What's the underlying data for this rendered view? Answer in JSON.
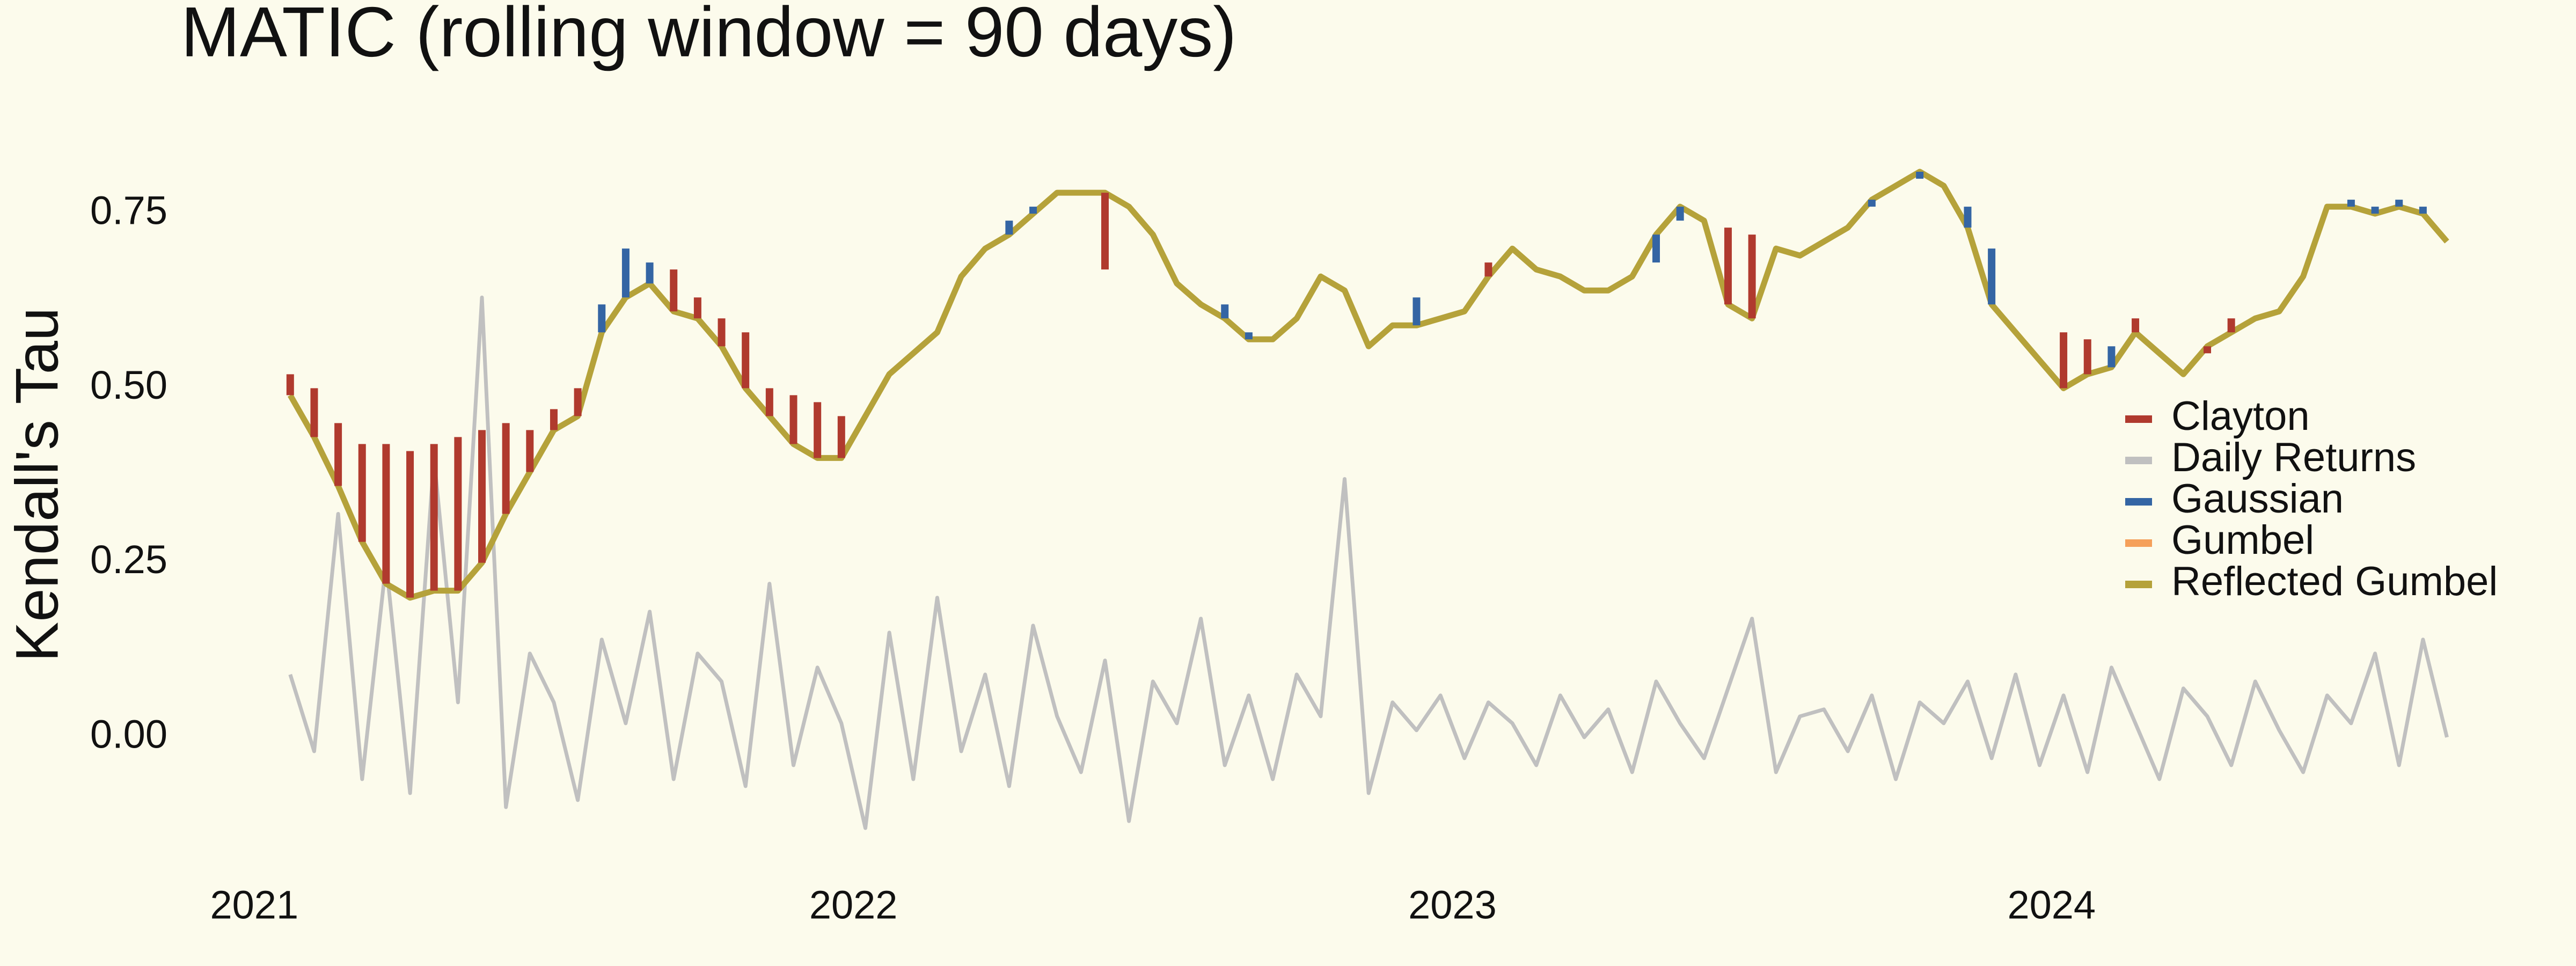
{
  "chart_data": {
    "type": "line",
    "title": "MATIC  (rolling window = 90 days)",
    "y_label": "Kendall's Tau",
    "x": [
      2021.06,
      2021.1,
      2021.14,
      2021.18,
      2021.22,
      2021.26,
      2021.3,
      2021.34,
      2021.38,
      2021.42,
      2021.46,
      2021.5,
      2021.54,
      2021.58,
      2021.62,
      2021.66,
      2021.7,
      2021.74,
      2021.78,
      2021.82,
      2021.86,
      2021.9,
      2021.94,
      2021.98,
      2022.02,
      2022.06,
      2022.1,
      2022.14,
      2022.18,
      2022.22,
      2022.26,
      2022.3,
      2022.34,
      2022.38,
      2022.42,
      2022.46,
      2022.5,
      2022.54,
      2022.58,
      2022.62,
      2022.66,
      2022.7,
      2022.74,
      2022.78,
      2022.82,
      2022.86,
      2022.9,
      2022.94,
      2022.98,
      2023.02,
      2023.06,
      2023.1,
      2023.14,
      2023.18,
      2023.22,
      2023.26,
      2023.3,
      2023.34,
      2023.38,
      2023.42,
      2023.46,
      2023.5,
      2023.54,
      2023.58,
      2023.62,
      2023.66,
      2023.7,
      2023.74,
      2023.78,
      2023.82,
      2023.86,
      2023.9,
      2023.94,
      2023.98,
      2024.02,
      2024.06,
      2024.1,
      2024.14,
      2024.18,
      2024.22,
      2024.26,
      2024.3,
      2024.34,
      2024.38,
      2024.42,
      2024.46,
      2024.5,
      2024.54,
      2024.58,
      2024.62,
      2024.66
    ],
    "series": [
      {
        "name": "Clayton",
        "color": "#b03a2e",
        "values": [
          0.52,
          0.5,
          0.45,
          0.42,
          0.42,
          0.41,
          0.42,
          0.43,
          0.44,
          0.45,
          0.44,
          0.47,
          0.5,
          null,
          null,
          null,
          0.67,
          0.63,
          0.6,
          0.58,
          0.5,
          0.49,
          0.48,
          0.46,
          null,
          null,
          null,
          null,
          null,
          null,
          null,
          null,
          null,
          null,
          0.67,
          null,
          null,
          null,
          null,
          null,
          null,
          null,
          null,
          null,
          null,
          null,
          null,
          null,
          null,
          null,
          0.68,
          null,
          null,
          null,
          null,
          null,
          null,
          null,
          null,
          null,
          0.73,
          0.72,
          null,
          null,
          null,
          null,
          null,
          null,
          null,
          null,
          null,
          null,
          null,
          null,
          0.58,
          0.57,
          null,
          0.6,
          null,
          null,
          0.55,
          0.6,
          null,
          null,
          null,
          null,
          null,
          null,
          null,
          null,
          null
        ]
      },
      {
        "name": "Daily Returns",
        "color": "#c0c0c0",
        "values": [
          0.09,
          -0.02,
          0.32,
          -0.06,
          0.25,
          -0.08,
          0.4,
          0.05,
          0.63,
          -0.1,
          0.12,
          0.05,
          -0.09,
          0.14,
          0.02,
          0.18,
          -0.06,
          0.12,
          0.08,
          -0.07,
          0.22,
          -0.04,
          0.1,
          0.02,
          -0.13,
          0.15,
          -0.06,
          0.2,
          -0.02,
          0.09,
          -0.07,
          0.16,
          0.03,
          -0.05,
          0.11,
          -0.12,
          0.08,
          0.02,
          0.17,
          -0.04,
          0.06,
          -0.06,
          0.09,
          0.03,
          0.37,
          -0.08,
          0.05,
          0.01,
          0.06,
          -0.03,
          0.05,
          0.02,
          -0.04,
          0.06,
          0.0,
          0.04,
          -0.05,
          0.08,
          0.02,
          -0.03,
          0.07,
          0.17,
          -0.05,
          0.03,
          0.04,
          -0.02,
          0.06,
          -0.06,
          0.05,
          0.02,
          0.08,
          -0.03,
          0.09,
          -0.04,
          0.06,
          -0.05,
          0.1,
          0.02,
          -0.06,
          0.07,
          0.03,
          -0.04,
          0.08,
          0.01,
          -0.05,
          0.06,
          0.02,
          0.12,
          -0.04,
          0.14,
          0.0
        ]
      },
      {
        "name": "Gaussian",
        "color": "#3465a4",
        "values": [
          null,
          null,
          null,
          null,
          null,
          null,
          null,
          null,
          null,
          null,
          null,
          null,
          null,
          0.62,
          0.7,
          0.68,
          null,
          null,
          null,
          null,
          null,
          null,
          null,
          null,
          null,
          null,
          null,
          null,
          null,
          null,
          0.74,
          0.76,
          null,
          null,
          null,
          null,
          null,
          null,
          null,
          0.62,
          0.58,
          null,
          null,
          null,
          null,
          null,
          null,
          0.63,
          null,
          null,
          null,
          null,
          null,
          null,
          null,
          null,
          null,
          0.68,
          0.74,
          null,
          null,
          null,
          null,
          null,
          null,
          null,
          0.76,
          0.79,
          0.8,
          null,
          0.76,
          0.7,
          null,
          null,
          null,
          null,
          0.56,
          null,
          null,
          null,
          null,
          null,
          null,
          null,
          null,
          null,
          0.77,
          0.76,
          0.77,
          0.76,
          null
        ]
      },
      {
        "name": "Gumbel",
        "color": "#f5a05a",
        "values": [
          null,
          null,
          null,
          null,
          null,
          null,
          null,
          null,
          null,
          null,
          null,
          null,
          null,
          null,
          null,
          null,
          null,
          null,
          null,
          null,
          null,
          null,
          null,
          null,
          null,
          null,
          null,
          null,
          null,
          null,
          null,
          null,
          null,
          null,
          null,
          null,
          null,
          null,
          null,
          null,
          null,
          null,
          null,
          null,
          null,
          null,
          null,
          null,
          null,
          null,
          null,
          null,
          null,
          null,
          null,
          null,
          null,
          null,
          null,
          null,
          null,
          null,
          null,
          null,
          null,
          null,
          null,
          null,
          null,
          null,
          null,
          null,
          null,
          null,
          null,
          null,
          null,
          null,
          null,
          null,
          null,
          null,
          null,
          null,
          null,
          null,
          null,
          null,
          null,
          null,
          null
        ]
      },
      {
        "name": "Reflected Gumbel",
        "color": "#b5a23a",
        "values": [
          0.49,
          0.43,
          0.36,
          0.28,
          0.22,
          0.2,
          0.21,
          0.21,
          0.25,
          0.32,
          0.38,
          0.44,
          0.46,
          0.58,
          0.63,
          0.65,
          0.61,
          0.6,
          0.56,
          0.5,
          0.46,
          0.42,
          0.4,
          0.4,
          0.46,
          0.52,
          0.55,
          0.58,
          0.66,
          0.7,
          0.72,
          0.75,
          0.78,
          0.78,
          0.78,
          0.76,
          0.72,
          0.65,
          0.62,
          0.6,
          0.57,
          0.57,
          0.6,
          0.66,
          0.64,
          0.56,
          0.59,
          0.59,
          0.6,
          0.61,
          0.66,
          0.7,
          0.67,
          0.66,
          0.64,
          0.64,
          0.66,
          0.72,
          0.76,
          0.74,
          0.62,
          0.6,
          0.7,
          0.69,
          0.71,
          0.73,
          0.77,
          0.79,
          0.81,
          0.79,
          0.73,
          0.62,
          0.58,
          0.54,
          0.5,
          0.52,
          0.53,
          0.58,
          0.55,
          0.52,
          0.56,
          0.58,
          0.6,
          0.61,
          0.66,
          0.76,
          0.76,
          0.75,
          0.76,
          0.75,
          0.71
        ]
      }
    ],
    "xlim": [
      2020.95,
      2024.75
    ],
    "xticks": [
      2021,
      2022,
      2023,
      2024
    ],
    "ylim": [
      -0.15,
      0.85
    ],
    "yticks": [
      {
        "value": 0,
        "label": "0.00"
      },
      {
        "value": 0.25,
        "label": "0.25"
      },
      {
        "value": 0.5,
        "label": "0.50"
      },
      {
        "value": 0.75,
        "label": "0.75"
      }
    ],
    "grid": false,
    "legend": "right"
  }
}
